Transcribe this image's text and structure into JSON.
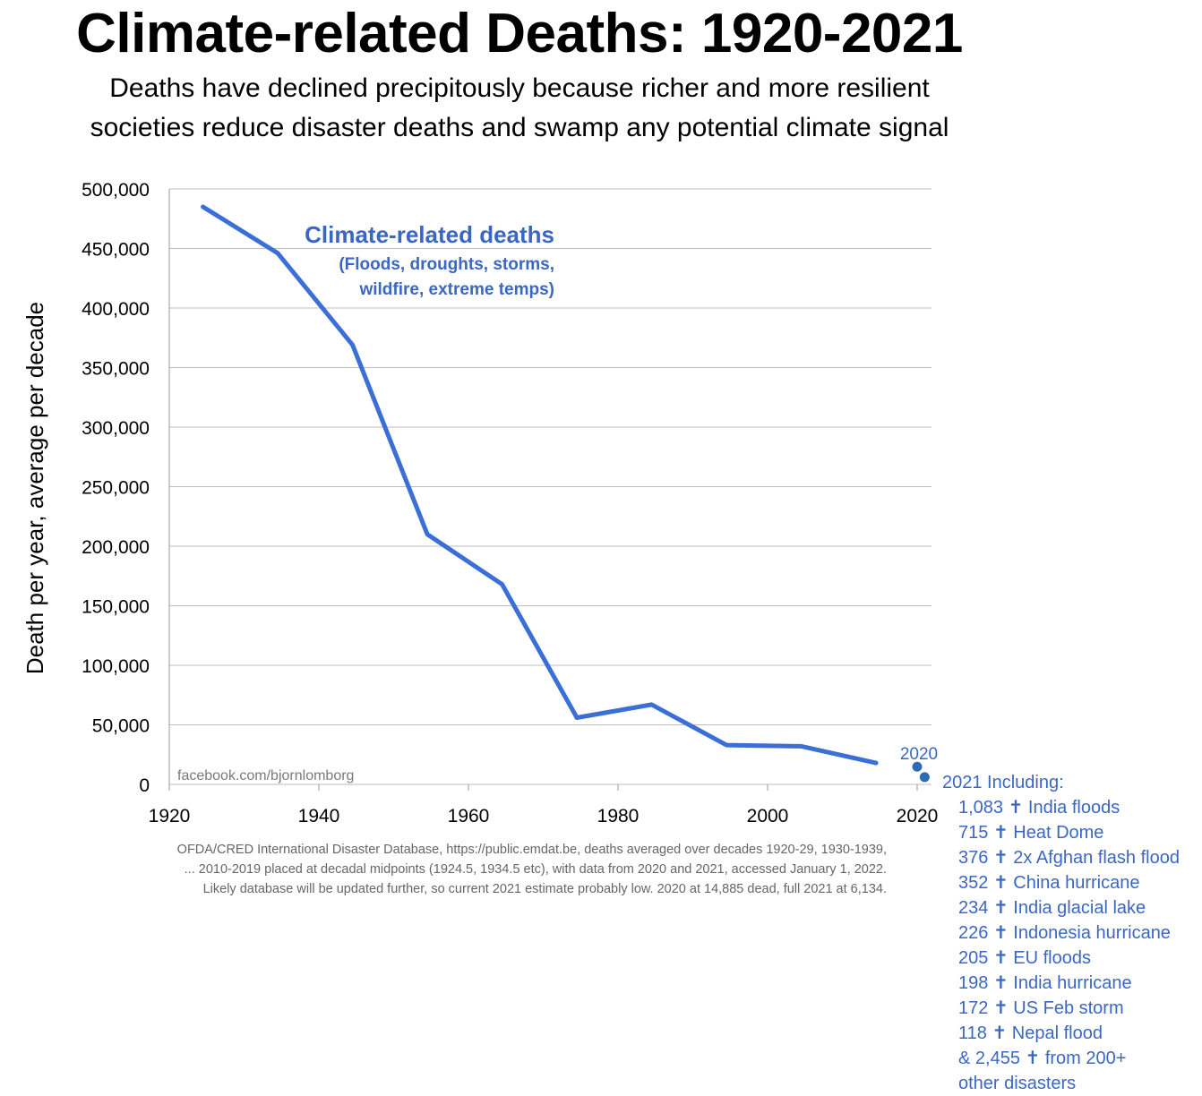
{
  "title": "Climate-related Deaths: 1920-2021",
  "subtitle_line1": "Deaths have declined precipitously because richer and more resilient",
  "subtitle_line2": "societies reduce disaster deaths and swamp any potential climate signal",
  "watermark": "facebook.com/bjornlomborg",
  "source_lines": [
    "OFDA/CRED International Disaster Database, https://public.emdat.be, deaths averaged over decades 1920-29, 1930-1939,",
    "... 2010-2019 placed at decadal midpoints (1924.5, 1934.5 etc), with data from 2020 and 2021, accessed January 1, 2022.",
    "Likely database will be updated further, so current 2021 estimate probably low. 2020 at 14,885 dead, full 2021 at 6,134."
  ],
  "colors": {
    "line": "#3b6fd6",
    "annotation": "#3b67c4",
    "point": "#2f6ab5",
    "grid": "#bdbdbd"
  },
  "chart_data": {
    "type": "line",
    "xlabel": "",
    "ylabel": "Death per year, average per decade",
    "xlim": [
      1920,
      2021
    ],
    "ylim": [
      0,
      500000
    ],
    "x_ticks": [
      1920,
      1940,
      1960,
      1980,
      2000,
      2020
    ],
    "y_ticks": [
      0,
      50000,
      100000,
      150000,
      200000,
      250000,
      300000,
      350000,
      400000,
      450000,
      500000
    ],
    "y_tick_labels": [
      "0",
      "50,000",
      "100,000",
      "150,000",
      "200,000",
      "250,000",
      "300,000",
      "350,000",
      "400,000",
      "450,000",
      "500,000"
    ],
    "grid": true,
    "series": [
      {
        "name": "Climate-related deaths",
        "sublabel_line1": "(Floods, droughts, storms,",
        "sublabel_line2": "wildfire, extreme temps)",
        "x": [
          1924.5,
          1934.5,
          1944.5,
          1954.5,
          1964.5,
          1974.5,
          1984.5,
          1994.5,
          2004.5,
          2014.5
        ],
        "y": [
          485000,
          446000,
          369000,
          210000,
          168000,
          56000,
          67000,
          33000,
          32000,
          18000
        ]
      }
    ],
    "points": [
      {
        "x": 2020,
        "y": 14885,
        "label": "2020"
      },
      {
        "x": 2021,
        "y": 6134,
        "label": "2021 Including:"
      }
    ],
    "annotations_2021": [
      {
        "count": "1,083",
        "event": "India floods"
      },
      {
        "count": "715",
        "event": "Heat Dome"
      },
      {
        "count": "376",
        "event": "2x Afghan flash flood"
      },
      {
        "count": "352",
        "event": "China hurricane"
      },
      {
        "count": "234",
        "event": "India glacial lake"
      },
      {
        "count": "226",
        "event": "Indonesia hurricane"
      },
      {
        "count": "205",
        "event": "EU floods"
      },
      {
        "count": "198",
        "event": "India hurricane"
      },
      {
        "count": "172",
        "event": "US Feb storm"
      },
      {
        "count": "118",
        "event": "Nepal flood"
      },
      {
        "count": "& 2,455",
        "event": "from 200+"
      }
    ],
    "annotations_tail": "other disasters",
    "cross_symbol": "✝"
  }
}
